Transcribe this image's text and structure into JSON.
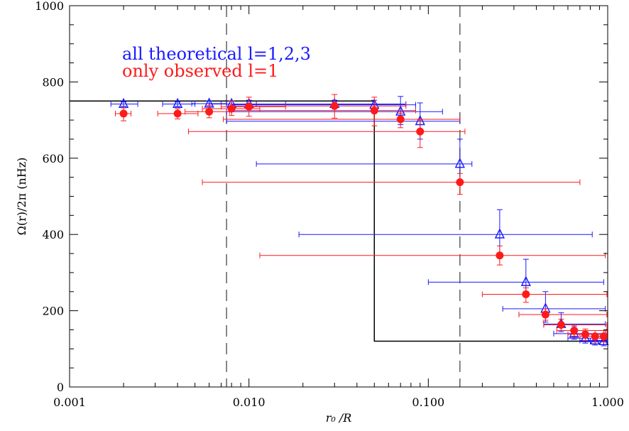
{
  "chart_data": {
    "type": "scatter",
    "xlabel": "r₀ /R",
    "ylabel": "Ω(r)/2π (nHz)",
    "xscale": "log",
    "xlim": [
      0.001,
      1.0
    ],
    "ylim": [
      0,
      1000
    ],
    "xticks": [
      {
        "value": 0.001,
        "label": "0.001"
      },
      {
        "value": 0.01,
        "label": "0.010"
      },
      {
        "value": 0.1,
        "label": "0.100"
      },
      {
        "value": 1.0,
        "label": "1.000"
      }
    ],
    "yticks": [
      {
        "value": 0,
        "label": "0"
      },
      {
        "value": 200,
        "label": "200"
      },
      {
        "value": 400,
        "label": "400"
      },
      {
        "value": 600,
        "label": "600"
      },
      {
        "value": 800,
        "label": "800"
      },
      {
        "value": 1000,
        "label": "1000"
      }
    ],
    "vlines": [
      0.0075,
      0.15
    ],
    "legend": [
      {
        "text": "all theoretical l=1,2,3",
        "color": "#1a1aff"
      },
      {
        "text": "only observed l=1",
        "color": "#ff1a1a"
      }
    ],
    "step_profile": {
      "color": "#000000",
      "points": [
        [
          0.001,
          750
        ],
        [
          0.05,
          750
        ],
        [
          0.05,
          120
        ],
        [
          1.0,
          120
        ]
      ]
    },
    "series": [
      {
        "marker": "triangle",
        "color": "#1a1aff",
        "points": [
          {
            "x": 0.002,
            "y": 742,
            "xlo": 0.0017,
            "xhi": 0.0024,
            "ylo": 736,
            "yhi": 748
          },
          {
            "x": 0.004,
            "y": 742,
            "xlo": 0.0033,
            "xhi": 0.005,
            "ylo": 736,
            "yhi": 748
          },
          {
            "x": 0.006,
            "y": 743,
            "xlo": 0.0048,
            "xhi": 0.0075,
            "ylo": 735,
            "yhi": 750
          },
          {
            "x": 0.008,
            "y": 742,
            "xlo": 0.006,
            "xhi": 0.011,
            "ylo": 734,
            "yhi": 750
          },
          {
            "x": 0.01,
            "y": 742,
            "xlo": 0.007,
            "xhi": 0.016,
            "ylo": 732,
            "yhi": 752
          },
          {
            "x": 0.03,
            "y": 742,
            "xlo": 0.008,
            "xhi": 0.075,
            "ylo": 730,
            "yhi": 752
          },
          {
            "x": 0.05,
            "y": 740,
            "xlo": 0.008,
            "xhi": 0.085,
            "ylo": 728,
            "yhi": 752
          },
          {
            "x": 0.07,
            "y": 722,
            "xlo": 0.0075,
            "xhi": 0.12,
            "ylo": 688,
            "yhi": 762
          },
          {
            "x": 0.09,
            "y": 697,
            "xlo": 0.0075,
            "xhi": 0.15,
            "ylo": 650,
            "yhi": 745
          },
          {
            "x": 0.15,
            "y": 585,
            "xlo": 0.011,
            "xhi": 0.175,
            "ylo": 540,
            "yhi": 650
          },
          {
            "x": 0.25,
            "y": 400,
            "xlo": 0.019,
            "xhi": 0.82,
            "ylo": 345,
            "yhi": 465
          },
          {
            "x": 0.35,
            "y": 275,
            "xlo": 0.1,
            "xhi": 0.95,
            "ylo": 250,
            "yhi": 335
          },
          {
            "x": 0.45,
            "y": 205,
            "xlo": 0.26,
            "xhi": 0.97,
            "ylo": 170,
            "yhi": 250
          },
          {
            "x": 0.55,
            "y": 165,
            "xlo": 0.44,
            "xhi": 0.97,
            "ylo": 145,
            "yhi": 195
          },
          {
            "x": 0.65,
            "y": 140,
            "xlo": 0.5,
            "xhi": 0.97,
            "ylo": 125,
            "yhi": 160
          },
          {
            "x": 0.75,
            "y": 128,
            "xlo": 0.6,
            "xhi": 0.97,
            "ylo": 115,
            "yhi": 145
          },
          {
            "x": 0.85,
            "y": 122,
            "xlo": 0.7,
            "xhi": 0.98,
            "ylo": 110,
            "yhi": 135
          },
          {
            "x": 0.95,
            "y": 120,
            "xlo": 0.8,
            "xhi": 0.99,
            "ylo": 108,
            "yhi": 132
          }
        ]
      },
      {
        "marker": "circle",
        "color": "#ff1a1a",
        "points": [
          {
            "x": 0.002,
            "y": 717,
            "xlo": 0.0018,
            "xhi": 0.0022,
            "ylo": 698,
            "yhi": 732
          },
          {
            "x": 0.004,
            "y": 717,
            "xlo": 0.0031,
            "xhi": 0.0052,
            "ylo": 703,
            "yhi": 730
          },
          {
            "x": 0.006,
            "y": 722,
            "xlo": 0.0044,
            "xhi": 0.0078,
            "ylo": 706,
            "yhi": 738
          },
          {
            "x": 0.008,
            "y": 730,
            "xlo": 0.0055,
            "xhi": 0.0115,
            "ylo": 712,
            "yhi": 750
          },
          {
            "x": 0.01,
            "y": 735,
            "xlo": 0.007,
            "xhi": 0.016,
            "ylo": 710,
            "yhi": 760
          },
          {
            "x": 0.03,
            "y": 737,
            "xlo": 0.008,
            "xhi": 0.075,
            "ylo": 705,
            "yhi": 767
          },
          {
            "x": 0.05,
            "y": 725,
            "xlo": 0.008,
            "xhi": 0.085,
            "ylo": 685,
            "yhi": 760
          },
          {
            "x": 0.07,
            "y": 702,
            "xlo": 0.0072,
            "xhi": 0.15,
            "ylo": 680,
            "yhi": 718
          },
          {
            "x": 0.09,
            "y": 670,
            "xlo": 0.0046,
            "xhi": 0.16,
            "ylo": 628,
            "yhi": 700
          },
          {
            "x": 0.15,
            "y": 537,
            "xlo": 0.0055,
            "xhi": 0.7,
            "ylo": 505,
            "yhi": 560
          },
          {
            "x": 0.25,
            "y": 345,
            "xlo": 0.0115,
            "xhi": 0.97,
            "ylo": 320,
            "yhi": 370
          },
          {
            "x": 0.35,
            "y": 243,
            "xlo": 0.2,
            "xhi": 0.99,
            "ylo": 222,
            "yhi": 260
          },
          {
            "x": 0.45,
            "y": 190,
            "xlo": 0.32,
            "xhi": 0.99,
            "ylo": 175,
            "yhi": 205
          },
          {
            "x": 0.55,
            "y": 163,
            "xlo": 0.44,
            "xhi": 0.99,
            "ylo": 148,
            "yhi": 178
          },
          {
            "x": 0.65,
            "y": 148,
            "xlo": 0.52,
            "xhi": 0.99,
            "ylo": 133,
            "yhi": 163
          },
          {
            "x": 0.75,
            "y": 138,
            "xlo": 0.6,
            "xhi": 0.99,
            "ylo": 122,
            "yhi": 152
          },
          {
            "x": 0.85,
            "y": 133,
            "xlo": 0.7,
            "xhi": 0.99,
            "ylo": 118,
            "yhi": 148
          },
          {
            "x": 0.95,
            "y": 133,
            "xlo": 0.85,
            "xhi": 0.99,
            "ylo": 118,
            "yhi": 148
          }
        ]
      }
    ]
  }
}
